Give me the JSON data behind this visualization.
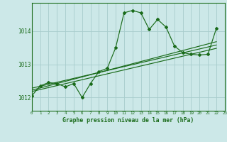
{
  "title": "Graphe pression niveau de la mer (hPa)",
  "bg_color": "#cce8e8",
  "line_color": "#1a6b1a",
  "grid_color": "#a8cccc",
  "xmin": 0,
  "xmax": 23,
  "ymin": 1011.6,
  "ymax": 1014.85,
  "yticks": [
    1012,
    1013,
    1014
  ],
  "xticks": [
    0,
    1,
    2,
    3,
    4,
    5,
    6,
    7,
    8,
    9,
    10,
    11,
    12,
    13,
    14,
    15,
    16,
    17,
    18,
    19,
    20,
    21,
    22,
    23
  ],
  "main_line": [
    [
      0,
      1012.05
    ],
    [
      1,
      1012.35
    ],
    [
      2,
      1012.45
    ],
    [
      3,
      1012.42
    ],
    [
      4,
      1012.32
    ],
    [
      5,
      1012.42
    ],
    [
      6,
      1012.0
    ],
    [
      7,
      1012.42
    ],
    [
      8,
      1012.78
    ],
    [
      9,
      1012.88
    ],
    [
      10,
      1013.5
    ],
    [
      11,
      1014.55
    ],
    [
      12,
      1014.62
    ],
    [
      13,
      1014.55
    ],
    [
      14,
      1014.05
    ],
    [
      15,
      1014.35
    ],
    [
      16,
      1014.12
    ],
    [
      17,
      1013.55
    ],
    [
      18,
      1013.35
    ],
    [
      19,
      1013.3
    ],
    [
      20,
      1013.28
    ],
    [
      21,
      1013.3
    ],
    [
      22,
      1014.08
    ]
  ],
  "trend_lines": [
    [
      [
        0,
        1012.22
      ],
      [
        22,
        1013.68
      ]
    ],
    [
      [
        0,
        1012.28
      ],
      [
        22,
        1013.58
      ]
    ],
    [
      [
        0,
        1012.18
      ],
      [
        22,
        1013.48
      ]
    ]
  ]
}
